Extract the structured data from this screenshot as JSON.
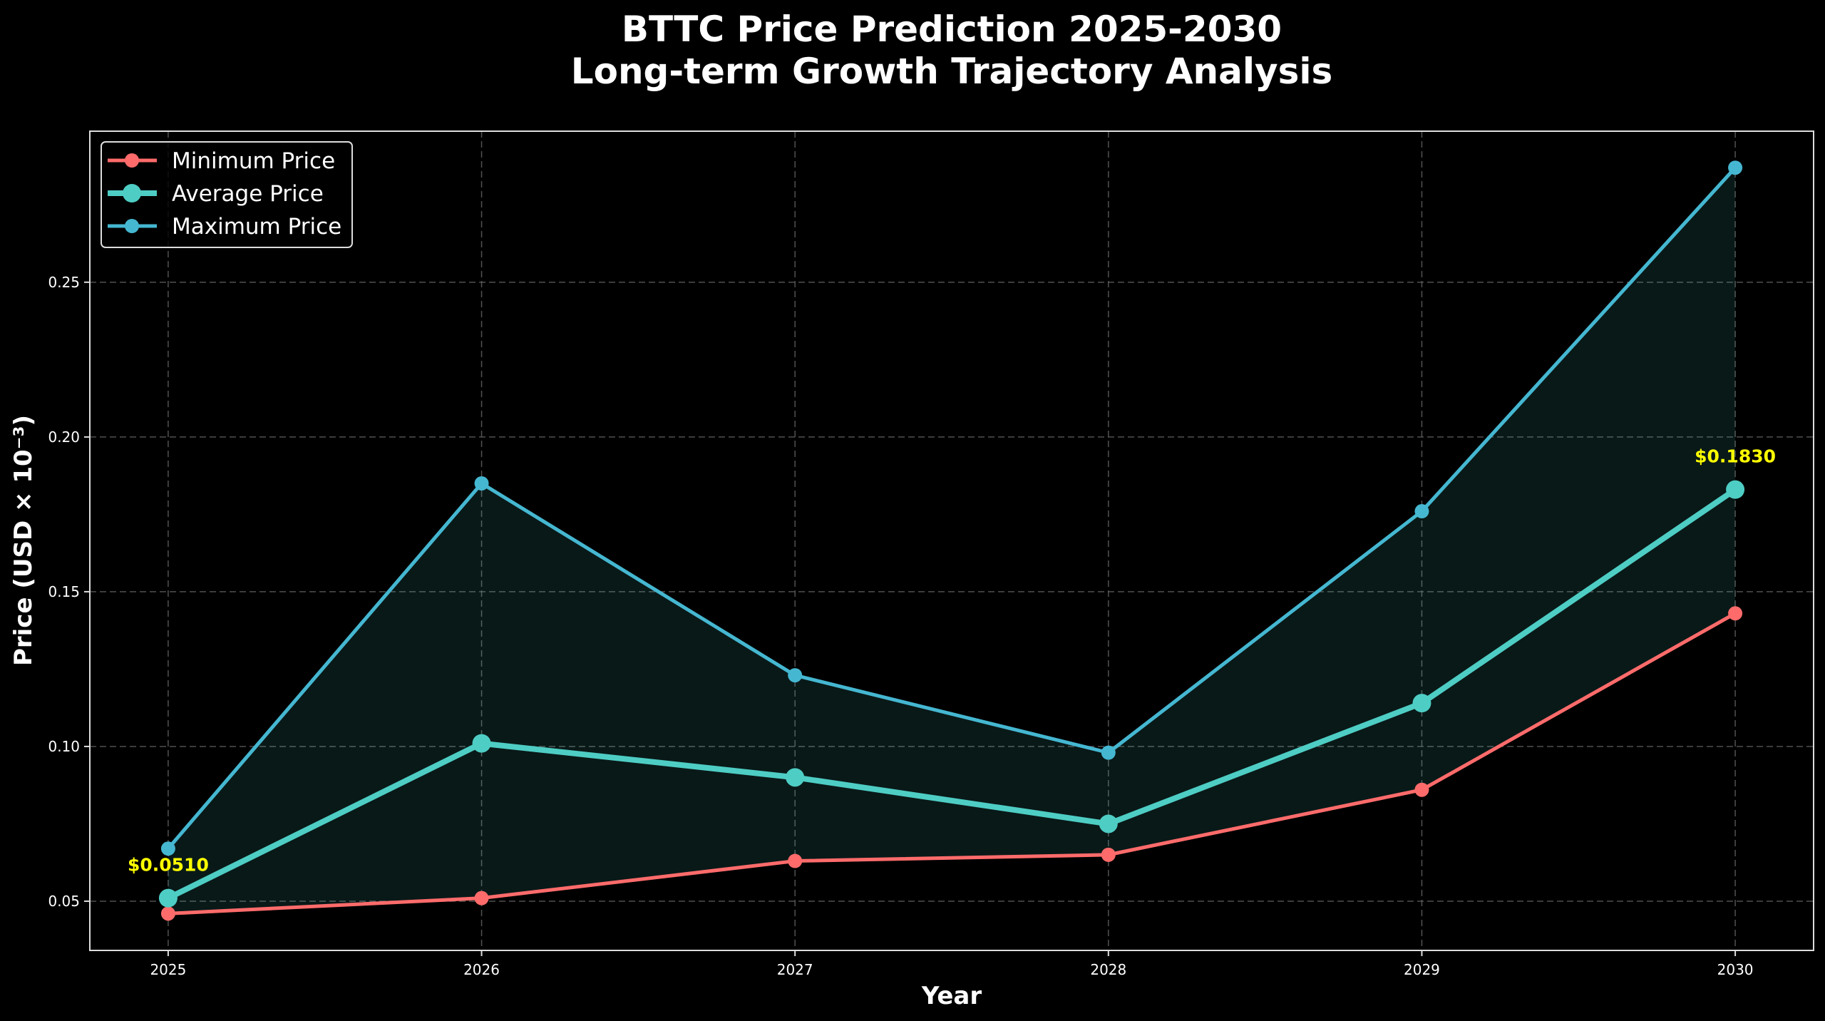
{
  "chart_data": {
    "type": "line",
    "title": "BTTC Price Prediction 2025-2030",
    "subtitle": "Long-term Growth Trajectory Analysis",
    "xlabel": "Year",
    "ylabel": "Price (USD × 10⁻³)",
    "x": [
      2025,
      2026,
      2027,
      2028,
      2029,
      2030
    ],
    "xticks": [
      "2025",
      "2026",
      "2027",
      "2028",
      "2029",
      "2030"
    ],
    "yticks": [
      "0.05",
      "0.10",
      "0.15",
      "0.20",
      "0.25"
    ],
    "ytick_values": [
      0.05,
      0.1,
      0.15,
      0.2,
      0.25
    ],
    "xlim": [
      2024.75,
      2030.25
    ],
    "ylim": [
      0.0341,
      0.2988
    ],
    "grid": true,
    "legend_placement": "top-left",
    "background": "#000000",
    "series": [
      {
        "name": "Minimum Price",
        "color": "#FF6B6B",
        "values": [
          0.046,
          0.051,
          0.063,
          0.065,
          0.086,
          0.143
        ]
      },
      {
        "name": "Average Price",
        "color": "#4ECDC4",
        "values": [
          0.051,
          0.101,
          0.09,
          0.075,
          0.114,
          0.183
        ]
      },
      {
        "name": "Maximum Price",
        "color": "#45B7D1",
        "values": [
          0.067,
          0.185,
          0.123,
          0.098,
          0.176,
          0.287
        ]
      }
    ],
    "fill_between": {
      "lower": "Minimum Price",
      "upper": "Maximum Price",
      "color": "#4ECDC4",
      "opacity": 0.12
    },
    "annotations": [
      {
        "x": 2025,
        "y": 0.051,
        "text": "$0.0510",
        "color": "#FFFF00"
      },
      {
        "x": 2030,
        "y": 0.183,
        "text": "$0.1830",
        "color": "#FFFF00"
      }
    ]
  }
}
